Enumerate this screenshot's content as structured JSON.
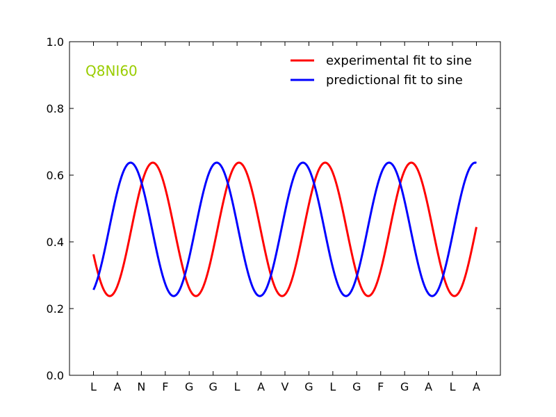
{
  "chart_data": {
    "type": "line",
    "title": "",
    "xlabel": "",
    "ylabel": "",
    "annotation": {
      "text": "Q8NI60",
      "color": "#9acd00"
    },
    "categories": [
      "L",
      "A",
      "N",
      "F",
      "G",
      "G",
      "L",
      "A",
      "V",
      "G",
      "L",
      "G",
      "F",
      "G",
      "A",
      "L",
      "A"
    ],
    "ylim": [
      0.0,
      1.0
    ],
    "yticks": [
      "0.0",
      "0.2",
      "0.4",
      "0.6",
      "0.8",
      "1.0"
    ],
    "grid": false,
    "legend_position": "top-right",
    "series": [
      {
        "name": "experimental fit to sine",
        "color": "#ff0000",
        "sine": {
          "mean": 0.4375,
          "amplitude": 0.2,
          "period": 3.6,
          "peak_index": 2.48
        }
      },
      {
        "name": "predictional fit to sine",
        "color": "#0000ff",
        "sine": {
          "mean": 0.4375,
          "amplitude": 0.2,
          "period": 3.6,
          "peak_index": 1.55
        }
      }
    ]
  }
}
